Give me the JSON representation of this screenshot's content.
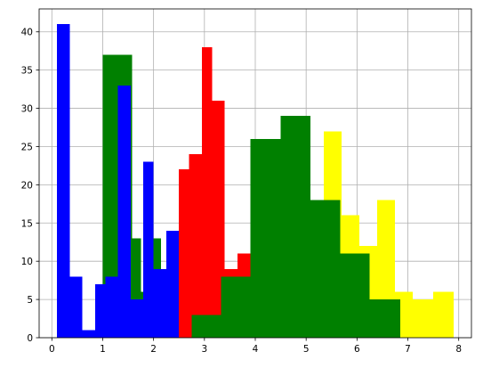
{
  "chart_data": {
    "type": "bar",
    "subtype": "overlapping-histograms",
    "title": "",
    "xlabel": "",
    "ylabel": "",
    "xlim": [
      -0.25,
      8.25
    ],
    "ylim": [
      0,
      43
    ],
    "xticks": [
      0,
      1,
      2,
      3,
      4,
      5,
      6,
      7,
      8
    ],
    "yticks": [
      0,
      5,
      10,
      15,
      20,
      25,
      30,
      35,
      40
    ],
    "grid": true,
    "legend": "none",
    "series": [
      {
        "color": "#ffff00",
        "bins": [
          [
            5.35,
            5.7,
            27
          ],
          [
            5.7,
            6.05,
            16
          ],
          [
            6.05,
            6.4,
            12
          ],
          [
            6.4,
            6.75,
            18
          ],
          [
            6.75,
            7.1,
            6
          ],
          [
            7.1,
            7.5,
            5
          ],
          [
            7.5,
            7.9,
            6
          ]
        ]
      },
      {
        "color": "#ff0000",
        "bins": [
          [
            2.5,
            2.7,
            22
          ],
          [
            2.7,
            2.95,
            24
          ],
          [
            2.95,
            3.15,
            38
          ],
          [
            3.15,
            3.4,
            31
          ],
          [
            3.4,
            3.65,
            9
          ],
          [
            3.65,
            3.9,
            11
          ]
        ]
      },
      {
        "color": "#008000",
        "bins": [
          [
            1.0,
            1.58,
            37
          ],
          [
            1.58,
            1.75,
            13
          ],
          [
            1.75,
            2.0,
            6
          ],
          [
            2.0,
            2.15,
            13
          ],
          [
            2.15,
            2.5,
            9
          ],
          [
            2.5,
            2.75,
            0
          ],
          [
            2.75,
            3.33,
            3
          ],
          [
            3.33,
            3.9,
            8
          ],
          [
            3.9,
            4.5,
            26
          ],
          [
            4.5,
            5.08,
            29
          ],
          [
            5.08,
            5.67,
            18
          ],
          [
            5.67,
            6.25,
            11
          ],
          [
            6.25,
            6.85,
            5
          ]
        ]
      },
      {
        "color": "#0000ff",
        "bins": [
          [
            0.1,
            0.35,
            41
          ],
          [
            0.35,
            0.6,
            8
          ],
          [
            0.6,
            0.85,
            1
          ],
          [
            0.85,
            1.05,
            7
          ],
          [
            1.05,
            1.3,
            8
          ],
          [
            1.3,
            1.55,
            33
          ],
          [
            1.55,
            1.8,
            5
          ],
          [
            1.8,
            2.0,
            23
          ],
          [
            2.0,
            2.25,
            9
          ],
          [
            2.25,
            2.5,
            14
          ]
        ]
      }
    ]
  }
}
